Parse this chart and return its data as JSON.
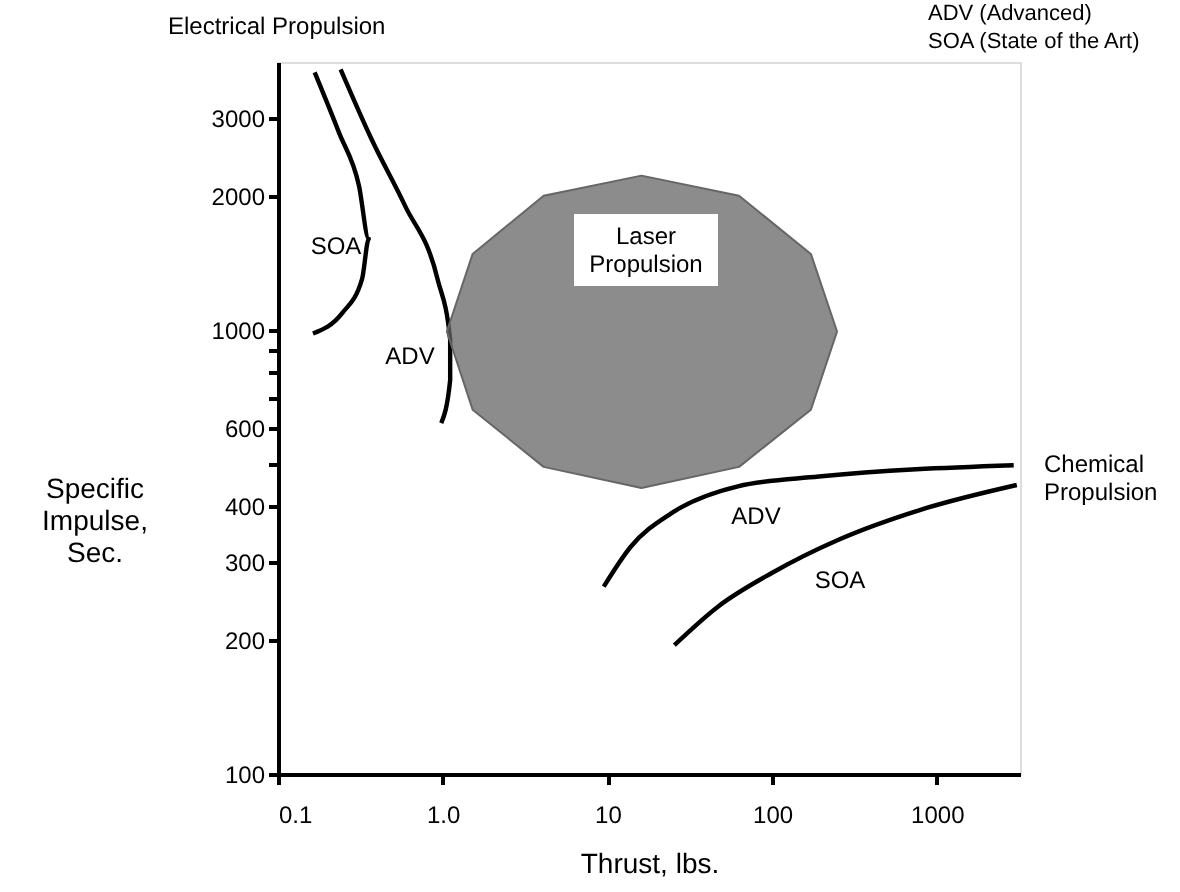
{
  "chart_data": {
    "type": "line",
    "xlabel": "Thrust, lbs.",
    "ylabel": "Specific Impulse, Sec.",
    "log": "xy",
    "grid": false,
    "marker": "none",
    "line_style": "solid",
    "xlim": [
      0.1,
      3200
    ],
    "ylim": [
      100,
      4000
    ],
    "xticks": [
      0.1,
      {
        "value": 1,
        "label": "1.0"
      },
      10,
      100,
      1000
    ],
    "yticks": [
      100,
      200,
      300,
      400,
      {
        "value": 500,
        "label": null
      },
      600,
      {
        "value": 700,
        "label": null
      },
      {
        "value": 800,
        "label": null
      },
      {
        "value": 900,
        "label": null
      },
      1000,
      2000,
      3000
    ],
    "series": [
      {
        "color": "#000000",
        "x": [
          0.167,
          0.235,
          0.31,
          0.356,
          0.324,
          0.246,
          0.163
        ],
        "values": [
          3790,
          2770,
          2110,
          1600,
          1300,
          1090,
          980
        ]
      },
      {
        "color": "#000000",
        "x": [
          0.24,
          0.37,
          0.59,
          0.93,
          1.11,
          1.11,
          0.98
        ],
        "values": [
          3850,
          2680,
          1900,
          1300,
          950,
          770,
          616
        ]
      },
      {
        "color": "#000000",
        "x": [
          9.5,
          13.9,
          24.4,
          62,
          192,
          2930
        ],
        "values": [
          264,
          325,
          386,
          444,
          467,
          495
        ]
      },
      {
        "color": "#000000",
        "x": [
          25.5,
          46.9,
          99,
          255,
          796,
          3060
        ],
        "values": [
          195,
          238,
          283,
          337,
          393,
          447
        ]
      },
      {
        "type": "area",
        "color": "#666666",
        "x": [
          248,
          172,
          63,
          16.1,
          4.1,
          1.52,
          1.06,
          1.52,
          4.1,
          16.1,
          63,
          172,
          248
        ],
        "values": [
          990,
          1480,
          2000,
          2220,
          2000,
          1480,
          990,
          660,
          491,
          440,
          491,
          660,
          990
        ]
      }
    ],
    "annotations": [
      "Electrical Propulsion",
      "Chemical Propulsion",
      "ADV (Advanced)",
      "SOA (State of the Art)",
      "SOA",
      "ADV",
      "Laser Propulsion",
      "ADV",
      "SOA"
    ]
  }
}
